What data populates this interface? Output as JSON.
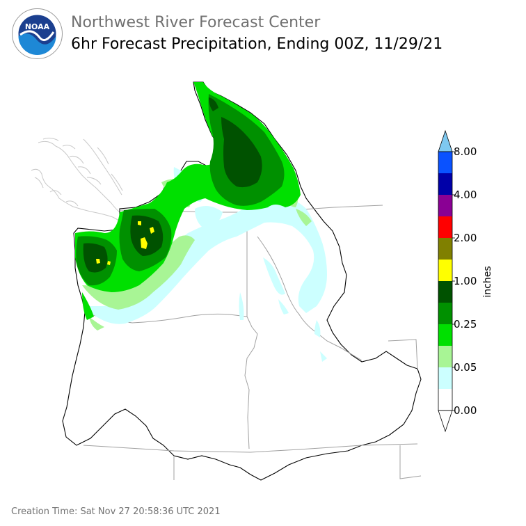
{
  "header": {
    "title": "Northwest River Forecast Center",
    "subtitle": "6hr Forecast Precipitation, Ending 00Z, 11/29/21"
  },
  "logo": {
    "text": "NOAA",
    "ring_text": "NATIONAL OCEANIC AND ATMOSPHERIC ADMINISTRATION · U.S. DEPARTMENT OF COMMERCE",
    "colors": {
      "ring": "#ffffff",
      "sky": "#1b3f8f",
      "sea": "#1e88d6",
      "bird": "#ffffff"
    }
  },
  "colorbar": {
    "unit_label": "inches",
    "tick_labels": [
      "0.00",
      "0.05",
      "0.25",
      "1.00",
      "2.00",
      "4.00",
      "8.00"
    ],
    "bins": [
      {
        "color": "#ffffff"
      },
      {
        "color": "#ccffff"
      },
      {
        "color": "#a8f595"
      },
      {
        "color": "#00e000"
      },
      {
        "color": "#009000"
      },
      {
        "color": "#005200"
      },
      {
        "color": "#ffff00"
      },
      {
        "color": "#808000"
      },
      {
        "color": "#ff0000"
      },
      {
        "color": "#8a0094"
      },
      {
        "color": "#0000a8"
      },
      {
        "color": "#0a52ff"
      }
    ],
    "under_color": "#ffffff",
    "over_color": "#7ec8f0"
  },
  "footer": {
    "creation_time": "Creation Time: Sat Nov 27 20:58:36 UTC 2021"
  }
}
